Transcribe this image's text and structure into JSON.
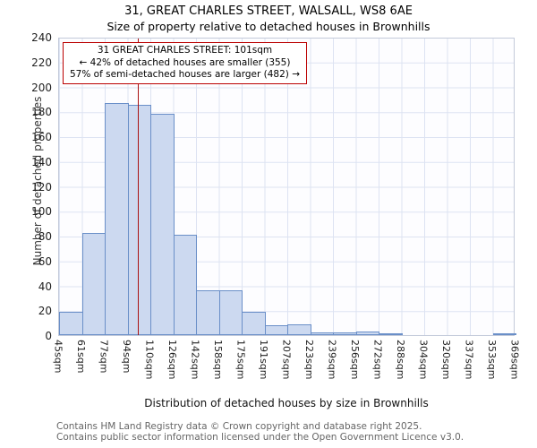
{
  "title": {
    "line1": "31, GREAT CHARLES STREET, WALSALL, WS8 6AE",
    "line2": "Size of property relative to detached houses in Brownhills"
  },
  "y_axis": {
    "label": "Number of detached properties",
    "max": 240,
    "step": 20
  },
  "x_axis": {
    "label": "Distribution of detached houses by size in Brownhills",
    "unit_suffix": "sqm"
  },
  "annotation": {
    "line1": "31 GREAT CHARLES STREET: 101sqm",
    "line2": "← 42% of detached houses are smaller (355)",
    "line3": "57% of semi-detached houses are larger (482) →"
  },
  "marker": {
    "value_sqm": 101,
    "color": "#aa1111"
  },
  "footer": {
    "line1": "Contains HM Land Registry data © Crown copyright and database right 2025.",
    "line2": "Contains public sector information licensed under the Open Government Licence v3.0."
  },
  "chart_data": {
    "type": "bar",
    "title": "31, GREAT CHARLES STREET, WALSALL, WS8 6AE — Size of property relative to detached houses in Brownhills",
    "xlabel": "Distribution of detached houses by size in Brownhills",
    "ylabel": "Number of detached properties",
    "ylim": [
      0,
      240
    ],
    "grid": true,
    "bin_edges_sqm": [
      45,
      61,
      77,
      94,
      110,
      126,
      142,
      158,
      175,
      191,
      207,
      223,
      239,
      256,
      272,
      288,
      304,
      320,
      337,
      353,
      369
    ],
    "values": [
      19,
      82,
      187,
      185,
      178,
      81,
      36,
      36,
      19,
      8,
      9,
      2,
      2,
      3,
      1,
      0,
      0,
      0,
      0,
      1
    ],
    "bar_fill": "#ccd9f0",
    "bar_border": "#6a8fc8"
  }
}
